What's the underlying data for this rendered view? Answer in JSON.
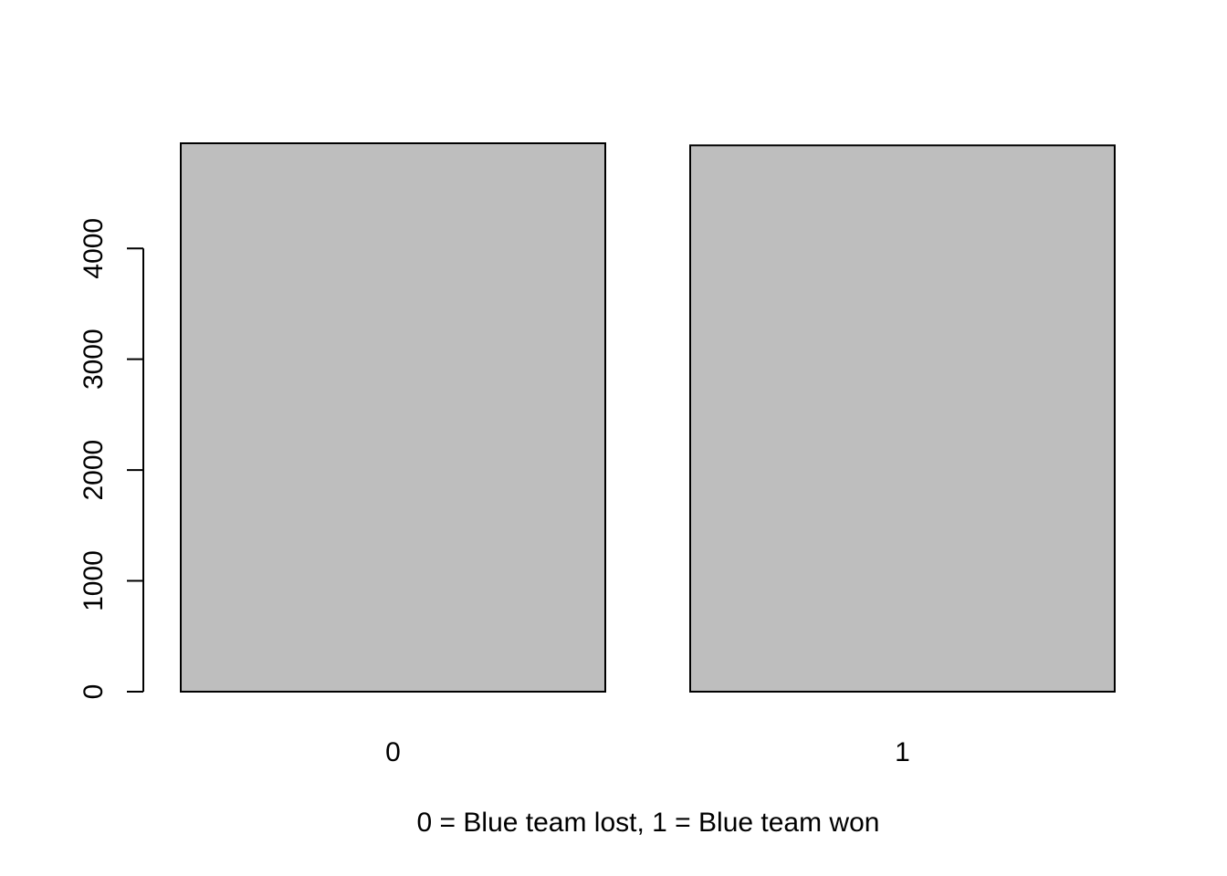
{
  "chart_data": {
    "type": "bar",
    "categories": [
      "0",
      "1"
    ],
    "values": [
      4949,
      4930
    ],
    "title": "",
    "xlabel": "0 = Blue team lost, 1 = Blue team won",
    "ylabel": "",
    "ylim": [
      0,
      4949
    ],
    "yticks": [
      0,
      1000,
      2000,
      3000,
      4000
    ],
    "ytick_labels": [
      "0",
      "1000",
      "2000",
      "3000",
      "4000"
    ],
    "grid": false,
    "legend": "none",
    "colors": {
      "bar_fill": "#bebebe",
      "bar_stroke": "#000000",
      "axis": "#000000"
    }
  }
}
